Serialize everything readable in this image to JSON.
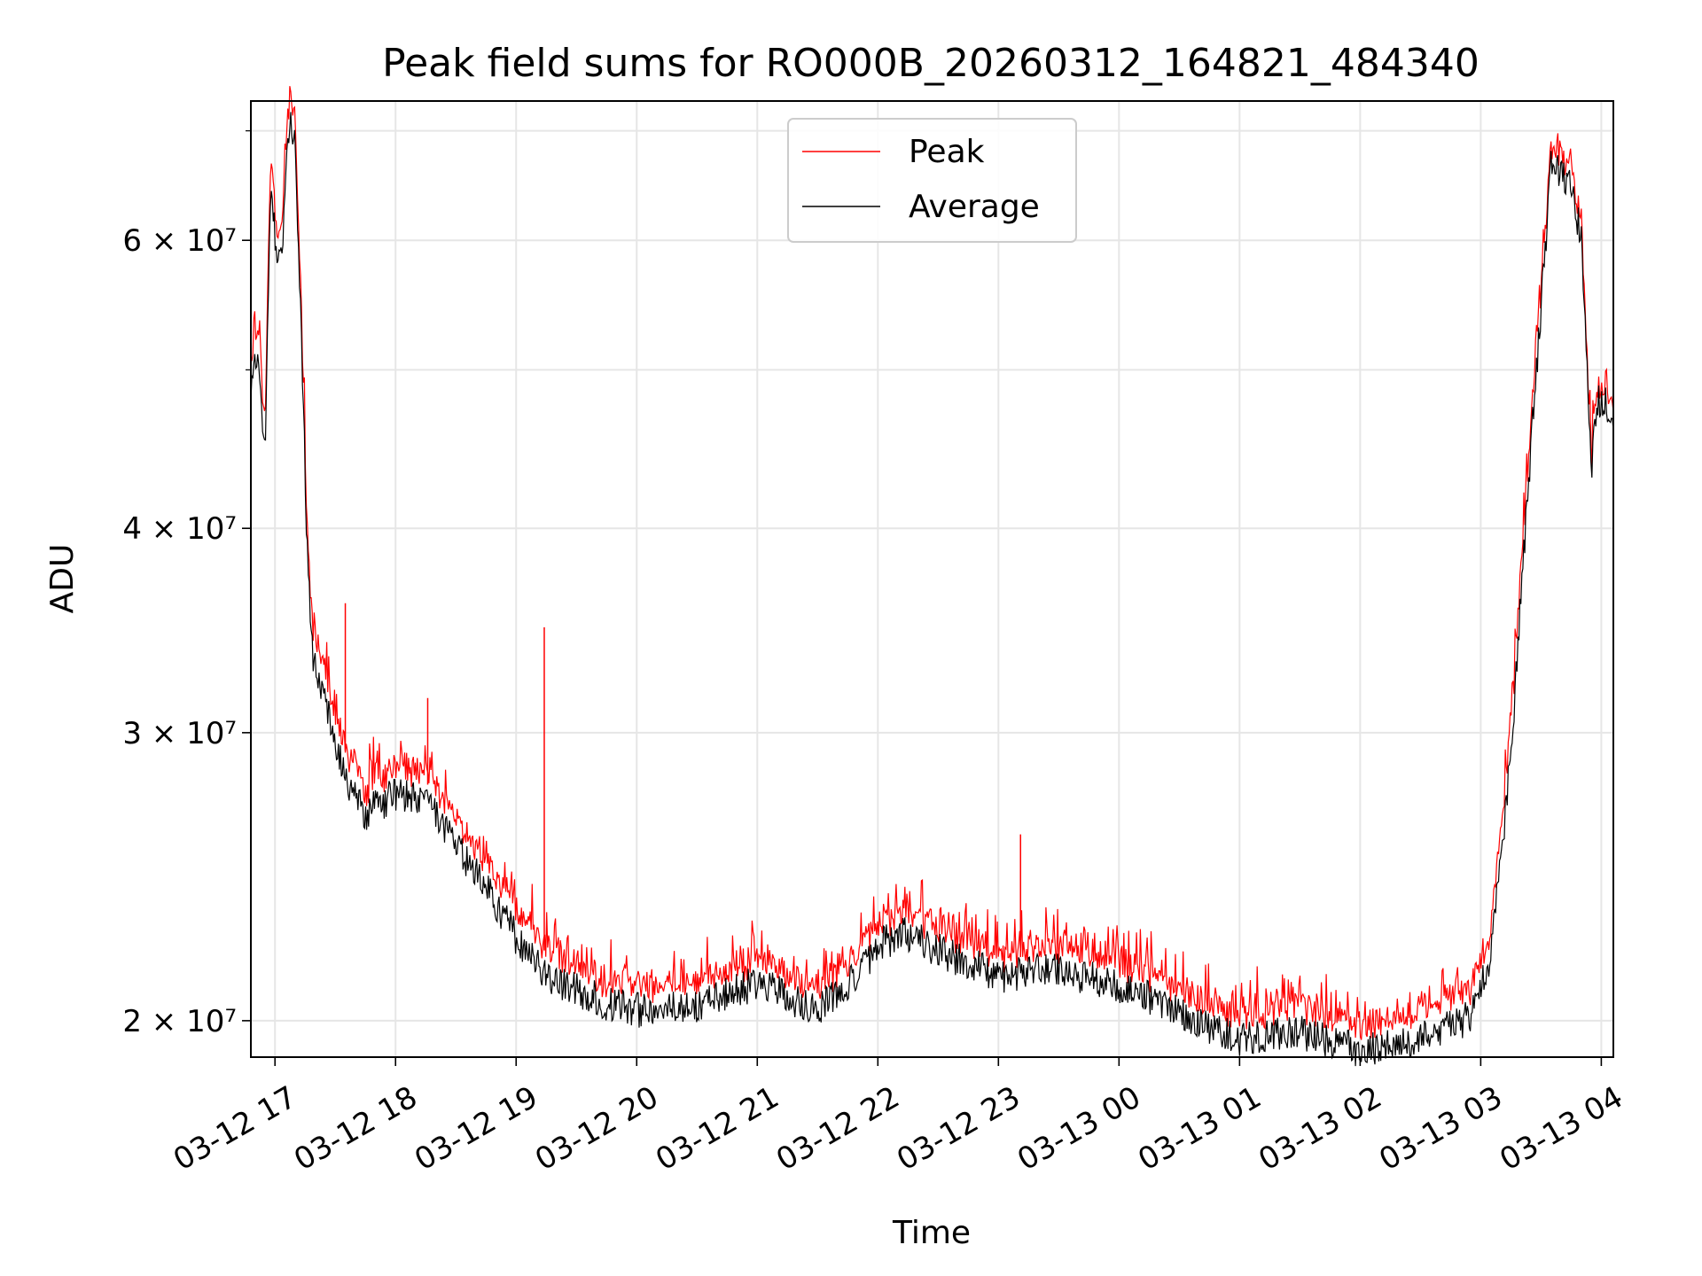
{
  "chart_data": {
    "type": "line",
    "title": "Peak field sums for RO000B_20260312_164821_484340",
    "xlabel": "Time",
    "ylabel": "ADU",
    "yscale": "log",
    "grid": true,
    "legend_position": "top-center",
    "xlim": [
      "03-12 16:48",
      "03-13 04:06"
    ],
    "ylim": [
      19000000,
      73000000
    ],
    "x_tick_labels": [
      "03-12 17",
      "03-12 18",
      "03-12 19",
      "03-12 20",
      "03-12 21",
      "03-12 22",
      "03-12 23",
      "03-13 00",
      "03-13 01",
      "03-13 02",
      "03-13 03",
      "03-13 04"
    ],
    "y_ticks": [
      {
        "value": 20000000,
        "label": "2 × 10⁷"
      },
      {
        "value": 30000000,
        "label": "3 × 10⁷"
      },
      {
        "value": 40000000,
        "label": "4 × 10⁷"
      },
      {
        "value": 60000000,
        "label": "6 × 10⁷"
      }
    ],
    "x": [
      "03-12 16:48",
      "03-12 16:52",
      "03-12 16:55",
      "03-12 16:58",
      "03-12 17:01",
      "03-12 17:04",
      "03-12 17:07",
      "03-12 17:10",
      "03-12 17:13",
      "03-12 17:16",
      "03-12 17:19",
      "03-12 17:25",
      "03-12 17:30",
      "03-12 17:36",
      "03-12 17:45",
      "03-12 18:00",
      "03-12 18:15",
      "03-12 18:30",
      "03-12 18:45",
      "03-12 19:00",
      "03-12 19:15",
      "03-12 19:30",
      "03-12 19:45",
      "03-12 20:00",
      "03-12 20:30",
      "03-12 21:00",
      "03-12 21:30",
      "03-12 21:50",
      "03-12 22:00",
      "03-12 22:15",
      "03-12 22:30",
      "03-12 23:00",
      "03-12 23:30",
      "03-13 00:00",
      "03-13 00:30",
      "03-13 00:45",
      "03-13 01:00",
      "03-13 01:30",
      "03-13 02:00",
      "03-13 02:30",
      "03-13 02:55",
      "03-13 03:05",
      "03-13 03:15",
      "03-13 03:25",
      "03-13 03:35",
      "03-13 03:45",
      "03-13 03:50",
      "03-13 03:55",
      "03-13 03:58",
      "03-13 04:02",
      "03-13 04:06"
    ],
    "series": [
      {
        "name": "Peak",
        "color": "#ff0000",
        "values": [
          50000000,
          52500000,
          46000000,
          68000000,
          59000000,
          62000000,
          73000000,
          71000000,
          55000000,
          40000000,
          34000000,
          32500000,
          30500000,
          29000000,
          27500000,
          28300000,
          28000000,
          26300000,
          24900000,
          23200000,
          22000000,
          21500000,
          21000000,
          20800000,
          20900000,
          21600000,
          20800000,
          21800000,
          22800000,
          23100000,
          22600000,
          21800000,
          22000000,
          21500000,
          20800000,
          20300000,
          20000000,
          20300000,
          19700000,
          20100000,
          20700000,
          22500000,
          30000000,
          46000000,
          67500000,
          66000000,
          61000000,
          44000000,
          48500000,
          48500000,
          48000000
        ]
      },
      {
        "name": "Average",
        "color": "#000000",
        "values": [
          49000000,
          51000000,
          44500000,
          66000000,
          57500000,
          60000000,
          71000000,
          69000000,
          53500000,
          39000000,
          33000000,
          31500000,
          29500000,
          28000000,
          26800000,
          27500000,
          27200000,
          25600000,
          24200000,
          22500000,
          21300000,
          20900000,
          20500000,
          20300000,
          20400000,
          21100000,
          20300000,
          21300000,
          22300000,
          22600000,
          22100000,
          21300000,
          21500000,
          21000000,
          20300000,
          19800000,
          19500000,
          19700000,
          19200000,
          19500000,
          20100000,
          21800000,
          29000000,
          45000000,
          66500000,
          65000000,
          60000000,
          43500000,
          47800000,
          47800000,
          47000000
        ]
      }
    ],
    "annotations": [
      {
        "series": "Peak",
        "x": "03-12 17:35",
        "y": 36000000,
        "kind": "spike"
      },
      {
        "series": "Peak",
        "x": "03-12 18:16",
        "y": 31500000,
        "kind": "spike"
      },
      {
        "series": "Peak",
        "x": "03-12 19:14",
        "y": 34800000,
        "kind": "spike"
      },
      {
        "series": "Peak",
        "x": "03-12 23:11",
        "y": 26000000,
        "kind": "spike"
      }
    ],
    "colors": {
      "grid": "#e6e6e6",
      "axis": "#000000",
      "legend_border": "#cccccc"
    }
  }
}
